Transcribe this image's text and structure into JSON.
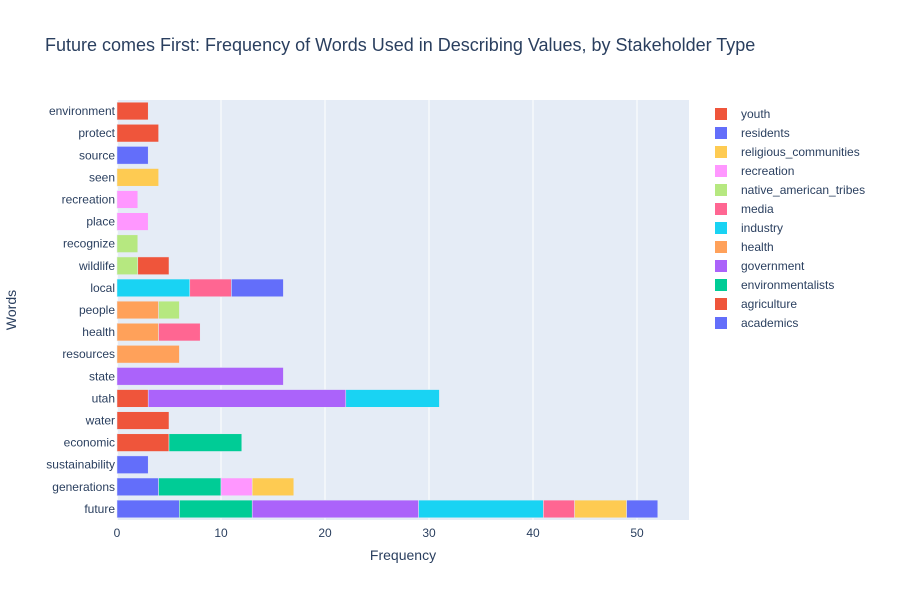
{
  "chart_data": {
    "type": "bar",
    "orientation": "horizontal",
    "barmode": "stack",
    "title": "Future comes First: Frequency of Words Used in Describing Values, by Stakeholder Type",
    "xlabel": "Frequency",
    "ylabel": "Words",
    "xlim": [
      0,
      55
    ],
    "x_ticks": [
      0,
      10,
      20,
      30,
      40,
      50
    ],
    "grid": true,
    "legend_position": "right",
    "categories": [
      "future",
      "generations",
      "sustainability",
      "economic",
      "water",
      "utah",
      "state",
      "resources",
      "health",
      "people",
      "local",
      "wildlife",
      "recognize",
      "place",
      "recreation",
      "seen",
      "source",
      "protect",
      "environment"
    ],
    "series": [
      {
        "name": "academics",
        "color": "#636efa",
        "values": [
          6,
          4,
          3,
          0,
          0,
          0,
          0,
          0,
          0,
          0,
          0,
          0,
          0,
          0,
          0,
          0,
          0,
          0,
          0
        ]
      },
      {
        "name": "agriculture",
        "color": "#ef553b",
        "values": [
          0,
          0,
          0,
          5,
          5,
          3,
          0,
          0,
          0,
          0,
          0,
          0,
          0,
          0,
          0,
          0,
          0,
          0,
          0
        ]
      },
      {
        "name": "environmentalists",
        "color": "#00cc96",
        "values": [
          7,
          6,
          0,
          7,
          0,
          0,
          0,
          0,
          0,
          0,
          0,
          0,
          0,
          0,
          0,
          0,
          0,
          0,
          0
        ]
      },
      {
        "name": "government",
        "color": "#ab63fa",
        "values": [
          16,
          0,
          0,
          0,
          0,
          19,
          16,
          0,
          0,
          0,
          0,
          0,
          0,
          0,
          0,
          0,
          0,
          0,
          0
        ]
      },
      {
        "name": "health",
        "color": "#ffa15a",
        "values": [
          0,
          0,
          0,
          0,
          0,
          0,
          0,
          6,
          4,
          4,
          0,
          0,
          0,
          0,
          0,
          0,
          0,
          0,
          0
        ]
      },
      {
        "name": "industry",
        "color": "#19d3f3",
        "values": [
          12,
          0,
          0,
          0,
          0,
          9,
          0,
          0,
          0,
          0,
          7,
          0,
          0,
          0,
          0,
          0,
          0,
          0,
          0
        ]
      },
      {
        "name": "media",
        "color": "#ff6692",
        "values": [
          3,
          0,
          0,
          0,
          0,
          0,
          0,
          0,
          4,
          0,
          4,
          0,
          0,
          0,
          0,
          0,
          0,
          0,
          0
        ]
      },
      {
        "name": "native_american_tribes",
        "color": "#b6e880",
        "values": [
          0,
          0,
          0,
          0,
          0,
          0,
          0,
          0,
          0,
          2,
          0,
          2,
          2,
          0,
          0,
          0,
          0,
          0,
          0
        ]
      },
      {
        "name": "recreation",
        "color": "#ff97ff",
        "values": [
          0,
          3,
          0,
          0,
          0,
          0,
          0,
          0,
          0,
          0,
          0,
          0,
          0,
          3,
          2,
          0,
          0,
          0,
          0
        ]
      },
      {
        "name": "religious_communities",
        "color": "#fecb52",
        "values": [
          5,
          4,
          0,
          0,
          0,
          0,
          0,
          0,
          0,
          0,
          0,
          0,
          0,
          0,
          0,
          4,
          0,
          0,
          0
        ]
      },
      {
        "name": "residents",
        "color": "#636efa",
        "values": [
          3,
          0,
          0,
          0,
          0,
          0,
          0,
          0,
          0,
          0,
          5,
          0,
          0,
          0,
          0,
          0,
          3,
          0,
          0
        ]
      },
      {
        "name": "youth",
        "color": "#ef553b",
        "values": [
          0,
          0,
          0,
          0,
          0,
          0,
          0,
          0,
          0,
          0,
          0,
          3,
          0,
          0,
          0,
          0,
          0,
          4,
          3
        ]
      }
    ]
  }
}
